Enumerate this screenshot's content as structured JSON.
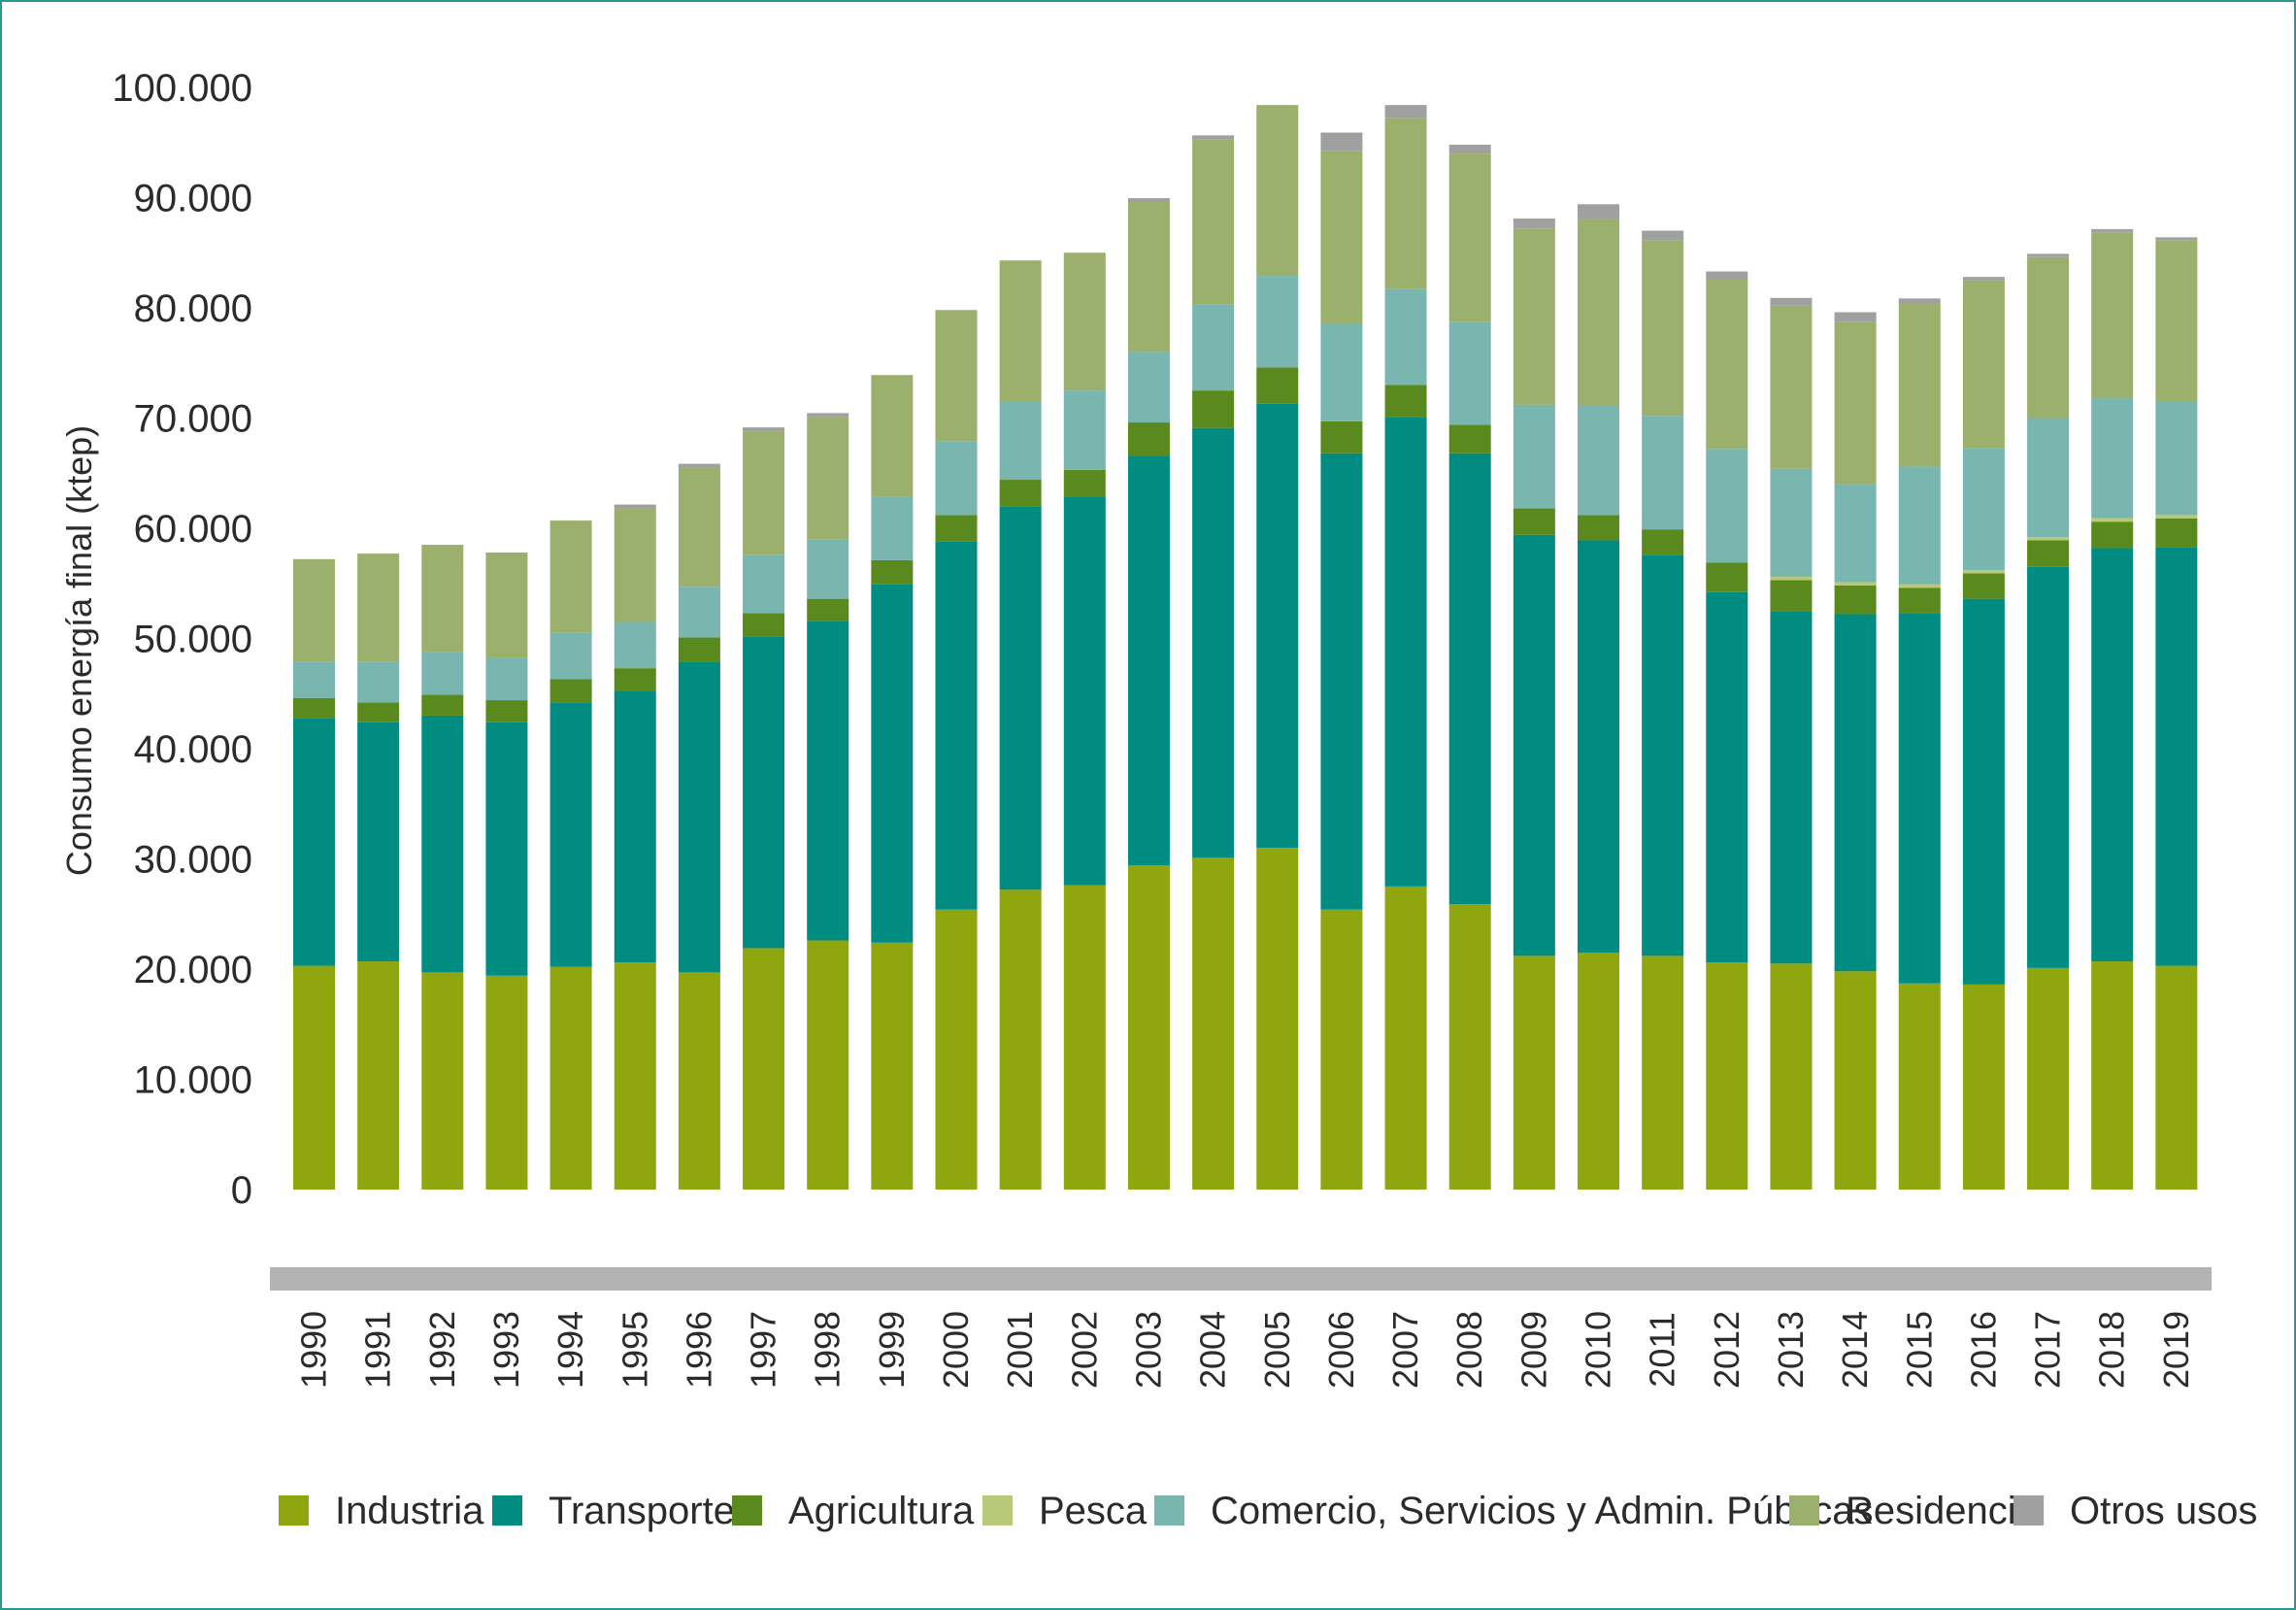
{
  "chart_data": {
    "type": "bar",
    "stacked": true,
    "title": "",
    "xlabel": "",
    "ylabel": "Consumo energía final (ktep)",
    "ylim": [
      0,
      100000
    ],
    "yticks": [
      0,
      10000,
      20000,
      30000,
      40000,
      50000,
      60000,
      70000,
      80000,
      90000,
      100000
    ],
    "ytick_labels": [
      "0",
      "10.000",
      "20.000",
      "30.000",
      "40.000",
      "50.000",
      "60.000",
      "70.000",
      "80.000",
      "90.000",
      "100.000"
    ],
    "grid": false,
    "legend_position": "bottom",
    "categories": [
      "1990",
      "1991",
      "1992",
      "1993",
      "1994",
      "1995",
      "1996",
      "1997",
      "1998",
      "1999",
      "2000",
      "2001",
      "2002",
      "2003",
      "2004",
      "2005",
      "2006",
      "2007",
      "2008",
      "2009",
      "2010",
      "2011",
      "2012",
      "2013",
      "2014",
      "2015",
      "2016",
      "2017",
      "2018",
      "2019"
    ],
    "series": [
      {
        "name": "Industria",
        "color": "#8fa60f",
        "values": [
          20300,
          20700,
          19700,
          19400,
          20200,
          20600,
          19700,
          21900,
          22600,
          22400,
          25400,
          27200,
          27600,
          29400,
          30100,
          31000,
          25400,
          27500,
          25900,
          21200,
          21500,
          21200,
          20600,
          20500,
          19800,
          18700,
          18600,
          20100,
          20700,
          20300
        ]
      },
      {
        "name": "Transporte",
        "color": "#008c80",
        "values": [
          22500,
          21700,
          23300,
          23000,
          24000,
          24600,
          28200,
          28300,
          29000,
          32500,
          33400,
          34800,
          35300,
          37200,
          39000,
          40300,
          41400,
          42600,
          40900,
          38200,
          37400,
          36400,
          33600,
          32000,
          32400,
          33600,
          35000,
          36400,
          37500,
          38000
        ]
      },
      {
        "name": "Agricultura",
        "color": "#5a8a1e",
        "values": [
          1800,
          1800,
          1900,
          2000,
          2100,
          2100,
          2200,
          2100,
          2000,
          2200,
          2400,
          2400,
          2400,
          3000,
          3400,
          3300,
          2900,
          2900,
          2600,
          2400,
          2300,
          2300,
          2700,
          2800,
          2600,
          2300,
          2300,
          2400,
          2400,
          2600
        ]
      },
      {
        "name": "Pesca",
        "color": "#b8c97a",
        "values": [
          0,
          0,
          0,
          0,
          0,
          0,
          0,
          0,
          0,
          0,
          0,
          0,
          0,
          0,
          0,
          0,
          0,
          0,
          0,
          0,
          0,
          0,
          0,
          300,
          300,
          300,
          300,
          300,
          300,
          300
        ]
      },
      {
        "name": "Comercio, Servicios y Admin. Públicas",
        "color": "#79b6b0",
        "values": [
          3300,
          3700,
          3900,
          3800,
          4200,
          4200,
          4600,
          5300,
          5400,
          5800,
          6700,
          7100,
          7200,
          6400,
          7800,
          8300,
          8800,
          8700,
          9300,
          9400,
          9900,
          10300,
          10300,
          9800,
          8900,
          10700,
          11100,
          10800,
          10900,
          10300
        ]
      },
      {
        "name": "Residencial",
        "color": "#9bb06c",
        "values": [
          9300,
          9800,
          9700,
          9600,
          10200,
          10300,
          10800,
          11200,
          11100,
          11000,
          11900,
          12800,
          12500,
          13600,
          15000,
          15500,
          15700,
          15500,
          15300,
          16000,
          17000,
          15900,
          15400,
          14800,
          14700,
          14800,
          15200,
          14600,
          15000,
          14600
        ]
      },
      {
        "name": "Otros usos",
        "color": "#a0a0a0",
        "values": [
          0,
          0,
          0,
          0,
          0,
          350,
          350,
          350,
          350,
          0,
          0,
          0,
          0,
          350,
          350,
          0,
          1700,
          1200,
          800,
          900,
          1300,
          900,
          700,
          700,
          900,
          450,
          300,
          300,
          350,
          300
        ]
      }
    ]
  }
}
